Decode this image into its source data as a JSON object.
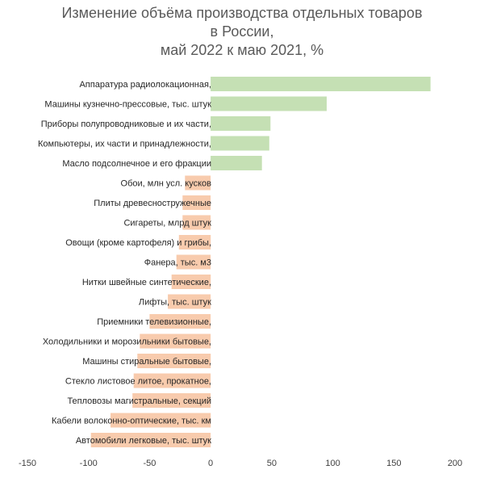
{
  "chart_data": {
    "type": "bar",
    "orientation": "horizontal",
    "title_lines": [
      "Изменение объёма производства отдельных товаров",
      "в России,",
      "май 2022 к маю 2021, %"
    ],
    "xlabel": "",
    "ylabel": "",
    "xlim": [
      -150,
      200
    ],
    "x_ticks": [
      -150,
      -100,
      -50,
      0,
      50,
      100,
      150,
      200
    ],
    "grid": false,
    "legend": "none",
    "colors": {
      "positive": "#c5e0b4",
      "negative": "#f8cbad"
    },
    "categories": [
      "Аппаратура радиолокационная,",
      "Машины кузнечно-прессовые, тыс. штук",
      "Приборы полупроводниковые и их части,",
      "Компьютеры, их части и принадлежности,",
      "Масло подсолнечное и его фракции",
      "Обои, млн усл. кусков",
      "Плиты древесностружечные",
      "Сигареты, млрд штук",
      "Овощи (кроме картофеля) и грибы,",
      "Фанера, тыс. м3",
      "Нитки швейные синтетические,",
      "Лифты, тыс. штук",
      "Приемники телевизионные,",
      "Холодильники и морозильники бытовые,",
      "Машины стиральные бытовые,",
      "Стекло листовое литое, прокатное,",
      "Тепловозы магистральные, секций",
      "Кабели волоконно-оптические, тыс. км",
      "Автомобили легковые, тыс. штук"
    ],
    "values": [
      180,
      95,
      49,
      48,
      42,
      -21,
      -23,
      -23,
      -26,
      -28,
      -32,
      -35,
      -50,
      -58,
      -60,
      -63,
      -64,
      -82,
      -98
    ]
  }
}
